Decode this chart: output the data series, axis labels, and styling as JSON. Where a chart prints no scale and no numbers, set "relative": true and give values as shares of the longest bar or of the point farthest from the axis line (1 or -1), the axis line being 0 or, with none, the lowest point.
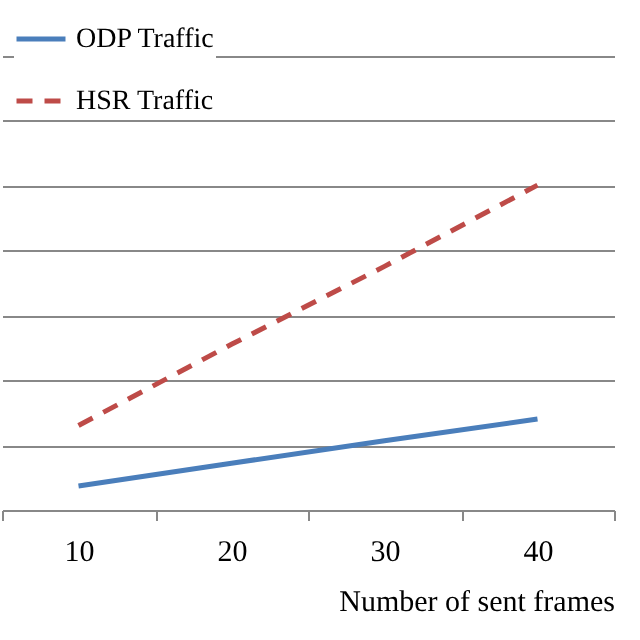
{
  "chart_data": {
    "type": "line",
    "xlabel": "Number of sent frames",
    "categories": [
      "10",
      "20",
      "30",
      "40"
    ],
    "relative": true,
    "grid": "y",
    "legend": "top left",
    "series": [
      {
        "name": "ODP Traffic",
        "color": "#4a7ebb",
        "line_style": "solid",
        "values": [
          0.074,
          0.144,
          0.213,
          0.28
        ]
      },
      {
        "name": "HSR Traffic",
        "color": "#be4b48",
        "line_style": "dashed",
        "values": [
          0.26,
          0.51,
          0.75,
          1
        ]
      }
    ]
  }
}
